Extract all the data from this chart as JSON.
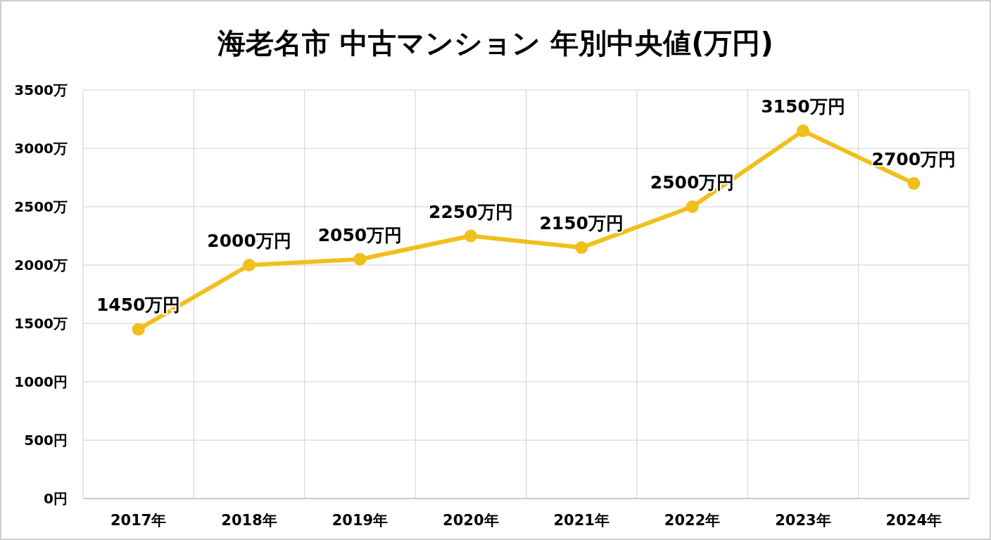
{
  "chart_data": {
    "type": "line",
    "title": "海老名市 中古マンション 年別中央値(万円)",
    "categories": [
      "2017年",
      "2018年",
      "2019年",
      "2020年",
      "2021年",
      "2022年",
      "2023年",
      "2024年"
    ],
    "series": [
      {
        "color": "#f0bf1a",
        "values": [
          1450,
          2000,
          2050,
          2250,
          2150,
          2500,
          3150,
          2700
        ],
        "value_labels": [
          "1450万円",
          "2000万円",
          "2050万円",
          "2250万円",
          "2150万円",
          "2500万円",
          "3150万円",
          "2700万円"
        ]
      }
    ],
    "ylim": [
      0,
      3500
    ],
    "yticks": [
      {
        "value": 0,
        "label": "0円"
      },
      {
        "value": 500,
        "label": "500円"
      },
      {
        "value": 1000,
        "label": "1000円"
      },
      {
        "value": 1500,
        "label": "1500万"
      },
      {
        "value": 2000,
        "label": "2000万"
      },
      {
        "value": 2500,
        "label": "2500万"
      },
      {
        "value": 3000,
        "label": "3000万"
      },
      {
        "value": 3500,
        "label": "3500万"
      }
    ],
    "grid": true,
    "marker": "circle",
    "line_style": "solid"
  }
}
